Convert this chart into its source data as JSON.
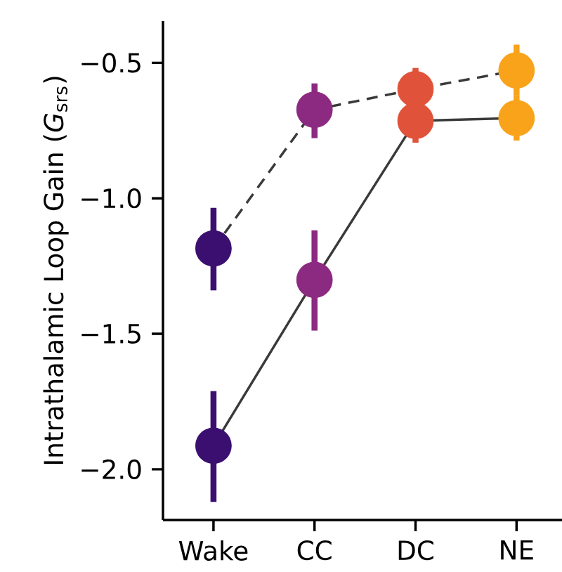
{
  "chart_data": {
    "type": "line",
    "ylabel": "Intrathalamic Loop Gain (*G*$_{srs}$)",
    "categories": [
      "Wake",
      "CC",
      "DC",
      "NE"
    ],
    "ylim": [
      -2.187,
      -0.346
    ],
    "yticks": [
      {
        "value": -2.0,
        "label": "−2.0"
      },
      {
        "value": -1.5,
        "label": "−1.5"
      },
      {
        "value": -1.0,
        "label": "−1.0"
      },
      {
        "value": -0.5,
        "label": "−0.5"
      }
    ],
    "marker": "circle",
    "series": [
      {
        "color": "#3a3a3a",
        "line_style": "dashed",
        "colors": [
          "#3b0f70",
          "#8c2981",
          "#e0533a",
          "#f9a31a"
        ],
        "values": [
          -1.185,
          -0.673,
          -0.597,
          -0.528
        ],
        "errors": [
          [
            -1.34,
            -1.035
          ],
          [
            -0.778,
            -0.576
          ],
          [
            -0.597,
            -0.519
          ],
          [
            -0.623,
            -0.433
          ]
        ]
      },
      {
        "color": "#3a3a3a",
        "line_style": "solid",
        "colors": [
          "#3b0f70",
          "#8c2981",
          "#e0533a",
          "#f9a31a"
        ],
        "values": [
          -1.913,
          -1.301,
          -0.714,
          -0.704
        ],
        "errors": [
          [
            -2.12,
            -1.711
          ],
          [
            -1.488,
            -1.118
          ],
          [
            -0.795,
            -0.714
          ],
          [
            -0.787,
            -0.623
          ]
        ]
      }
    ]
  }
}
